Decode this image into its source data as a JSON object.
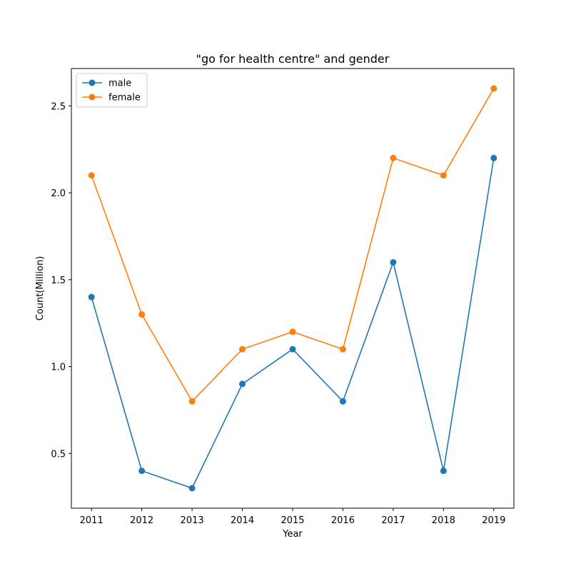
{
  "chart_data": {
    "type": "line",
    "title": "\"go for health centre\" and gender",
    "xlabel": "Year",
    "ylabel": "Count(Million)",
    "x": [
      "2011",
      "2012",
      "2013",
      "2014",
      "2015",
      "2016",
      "2017",
      "2018",
      "2019"
    ],
    "yticks": [
      "0.5",
      "1.0",
      "1.5",
      "2.0",
      "2.5"
    ],
    "ylim": [
      0.185,
      2.715
    ],
    "grid": false,
    "legend_position": "top-left",
    "series": [
      {
        "name": "male",
        "color": "#1f77b4",
        "values": [
          1.4,
          0.4,
          0.3,
          0.9,
          1.1,
          0.8,
          1.6,
          0.4,
          2.2
        ]
      },
      {
        "name": "female",
        "color": "#ff7f0e",
        "values": [
          2.1,
          1.3,
          0.8,
          1.1,
          1.2,
          1.1,
          2.2,
          2.1,
          2.6
        ]
      }
    ]
  }
}
